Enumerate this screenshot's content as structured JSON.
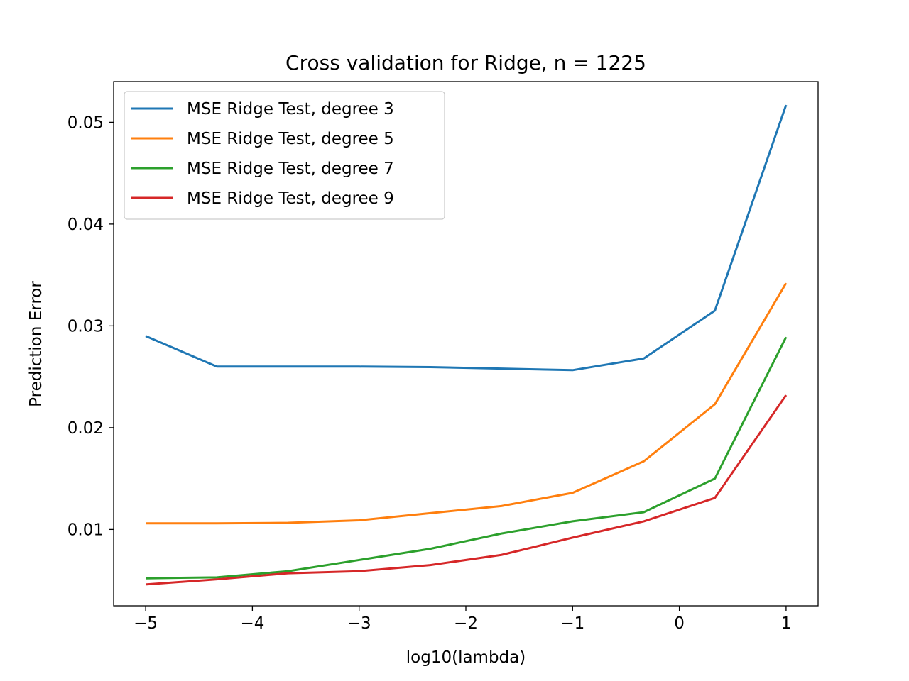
{
  "chart_data": {
    "type": "line",
    "title": "Cross validation for Ridge, n = 1225",
    "xlabel": "log10(lambda)",
    "ylabel": "Prediction Error",
    "xlim": [
      -5.3,
      1.3
    ],
    "ylim": [
      0.0025,
      0.054
    ],
    "xticks": [
      -5,
      -4,
      -3,
      -2,
      -1,
      0,
      1
    ],
    "xtick_labels": [
      "−5",
      "−4",
      "−3",
      "−2",
      "−1",
      "0",
      "1"
    ],
    "yticks": [
      0.01,
      0.02,
      0.03,
      0.04,
      0.05
    ],
    "ytick_labels": [
      "0.01",
      "0.02",
      "0.03",
      "0.04",
      "0.05"
    ],
    "grid": false,
    "legend_position": "top-left",
    "x": [
      -5,
      -4.333,
      -3.667,
      -3,
      -2.333,
      -1.667,
      -1,
      -0.333,
      0.333,
      1
    ],
    "series": [
      {
        "name": "MSE Ridge Test, degree 3",
        "color": "#1f77b4",
        "values": [
          0.029,
          0.026,
          0.026,
          0.026,
          0.02595,
          0.0258,
          0.02565,
          0.0268,
          0.0315,
          0.0517
        ]
      },
      {
        "name": "MSE Ridge Test, degree 5",
        "color": "#ff7f0e",
        "values": [
          0.0106,
          0.0106,
          0.01065,
          0.0109,
          0.0116,
          0.0123,
          0.0136,
          0.0167,
          0.0223,
          0.0342
        ]
      },
      {
        "name": "MSE Ridge Test, degree 7",
        "color": "#2ca02c",
        "values": [
          0.0052,
          0.0053,
          0.0059,
          0.007,
          0.0081,
          0.0096,
          0.0108,
          0.0117,
          0.015,
          0.0289
        ]
      },
      {
        "name": "MSE Ridge Test, degree 9",
        "color": "#d62728",
        "values": [
          0.0046,
          0.0051,
          0.0057,
          0.0059,
          0.0065,
          0.0075,
          0.0092,
          0.0108,
          0.0131,
          0.0232
        ]
      }
    ]
  }
}
